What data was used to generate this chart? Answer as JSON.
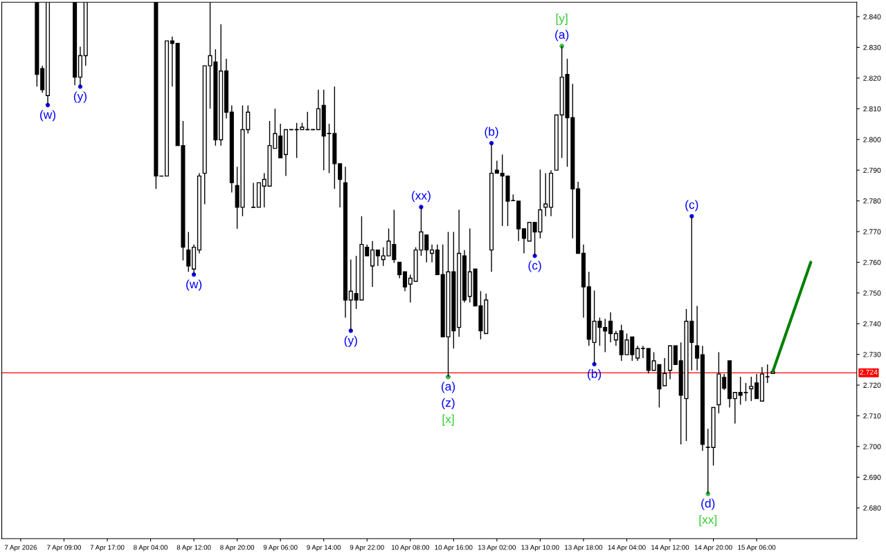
{
  "chart_data": {
    "type": "candlestick",
    "categories": [
      "7 Apr 2026",
      null,
      null,
      null,
      null,
      null,
      null,
      null,
      "7 Apr 09:00",
      null,
      null,
      null,
      null,
      null,
      null,
      null,
      "7 Apr 17:00",
      null,
      null,
      null,
      null,
      null,
      null,
      null,
      "8 Apr 04:00",
      null,
      null,
      null,
      null,
      null,
      null,
      null,
      "8 Apr 12:00",
      null,
      null,
      null,
      null,
      null,
      null,
      null,
      "8 Apr 20:00",
      null,
      null,
      null,
      null,
      null,
      null,
      null,
      "9 Apr 06:00",
      null,
      null,
      null,
      null,
      null,
      null,
      null,
      "9 Apr 14:00",
      null,
      null,
      null,
      null,
      null,
      null,
      null,
      "9 Apr 22:00",
      null,
      null,
      null,
      null,
      null,
      null,
      null,
      "10 Apr 08:00",
      null,
      null,
      null,
      null,
      null,
      null,
      null,
      "10 Apr 16:00",
      null,
      null,
      null,
      null,
      null,
      null,
      null,
      "13 Apr 02:00",
      null,
      null,
      null,
      null,
      null,
      null,
      null,
      "13 Apr 10:00",
      null,
      null,
      null,
      null,
      null,
      null,
      null,
      "13 Apr 18:00",
      null,
      null,
      null,
      null,
      null,
      null,
      null,
      "14 Apr 04:00",
      null,
      null,
      null,
      null,
      null,
      null,
      null,
      "14 Apr 12:00",
      null,
      null,
      null,
      null,
      null,
      null,
      null,
      "14 Apr 20:00",
      null,
      null,
      null,
      null,
      null,
      null,
      null,
      "15 Apr 06:00",
      null,
      null,
      null,
      null,
      null,
      null,
      null,
      null,
      null,
      null,
      null,
      null,
      null,
      null,
      null,
      null,
      null,
      null
    ],
    "ohlc": [
      null,
      null,
      null,
      [
        2.8447,
        2.8447,
        2.8172,
        2.8212
      ],
      [
        2.8231,
        2.824,
        2.8152,
        2.8162
      ],
      [
        2.8143,
        2.8447,
        2.8112,
        2.8447
      ],
      null,
      null,
      null,
      null,
      [
        2.8447,
        2.8447,
        2.8177,
        2.8203
      ],
      [
        2.8203,
        2.8302,
        2.8172,
        2.8273
      ],
      [
        2.8273,
        2.8447,
        2.824,
        2.8447
      ],
      null,
      null,
      null,
      null,
      null,
      null,
      null,
      null,
      null,
      null,
      null,
      null,
      [
        2.8447,
        2.8447,
        2.7839,
        2.7881
      ],
      [
        2.7881,
        2.7881,
        2.7881,
        2.7881
      ],
      [
        2.7881,
        2.8321,
        2.7881,
        2.8321
      ],
      [
        2.8321,
        2.8335,
        2.8172,
        2.8313
      ],
      [
        2.8313,
        2.8313,
        2.798,
        2.798
      ],
      [
        2.798,
        2.806,
        2.7606,
        2.7649
      ],
      [
        2.764,
        2.7699,
        2.7569,
        2.7588
      ],
      [
        2.7578,
        2.7658,
        2.756,
        2.7649
      ],
      [
        2.764,
        2.789,
        2.7629,
        2.7881
      ],
      [
        2.789,
        2.824,
        2.7789,
        2.824
      ],
      [
        2.824,
        2.8447,
        2.81,
        2.8273
      ],
      [
        2.8252,
        2.8294,
        2.798,
        2.7999
      ],
      [
        2.7999,
        2.8375,
        2.798,
        2.8223
      ],
      [
        2.8223,
        2.8263,
        2.8068,
        2.8089
      ],
      [
        2.8089,
        2.8111,
        2.7827,
        2.7859
      ],
      [
        2.785,
        2.7911,
        2.7709,
        2.7779
      ],
      [
        2.7779,
        2.8111,
        2.775,
        2.8032
      ],
      [
        2.8032,
        2.8111,
        2.8019,
        2.8089
      ],
      [
        2.7779,
        2.7859,
        2.7779,
        2.7779
      ],
      [
        2.7779,
        2.7859,
        2.7779,
        2.7859
      ],
      [
        2.7848,
        2.789,
        2.7779,
        2.787
      ],
      [
        2.7848,
        2.806,
        2.7848,
        2.798
      ],
      [
        2.7971,
        2.81,
        2.7971,
        2.8019
      ],
      [
        2.8011,
        2.8051,
        2.794,
        2.794
      ],
      [
        2.7951,
        2.8032,
        2.7881,
        2.8032
      ],
      [
        2.8032,
        2.8032,
        2.8032,
        2.8032
      ],
      [
        2.8032,
        2.8054,
        2.794,
        2.8032
      ],
      [
        2.8032,
        2.8054,
        2.8032,
        2.804
      ],
      [
        2.8032,
        2.809,
        2.8032,
        2.8032
      ],
      [
        2.8032,
        2.8032,
        2.8032,
        2.8032
      ],
      [
        2.8032,
        2.8162,
        2.8032,
        2.81
      ],
      [
        2.8111,
        2.8162,
        2.79,
        2.8011
      ],
      [
        2.8019,
        2.8051,
        2.789,
        2.8019
      ],
      [
        2.8019,
        2.8172,
        2.7839,
        2.7921
      ],
      [
        2.7921,
        2.7921,
        2.7779,
        2.787
      ],
      [
        2.7859,
        2.7911,
        2.742,
        2.7477
      ],
      [
        2.7477,
        2.7609,
        2.7377,
        2.7506
      ],
      [
        2.7498,
        2.7621,
        2.7448,
        2.7477
      ],
      [
        2.7477,
        2.775,
        2.7477,
        2.7658
      ],
      [
        2.7649,
        2.7658,
        2.7621,
        2.7621
      ],
      [
        2.7588,
        2.7669,
        2.752,
        2.764
      ],
      [
        2.764,
        2.764,
        2.7588,
        2.7621
      ],
      [
        2.7609,
        2.7649,
        2.7588,
        2.7621
      ],
      [
        2.7621,
        2.771,
        2.7621,
        2.7669
      ],
      [
        2.7658,
        2.7771,
        2.7598,
        2.7609
      ],
      [
        2.76,
        2.76,
        2.7548,
        2.756
      ],
      [
        2.7569,
        2.7569,
        2.7506,
        2.752
      ],
      [
        2.7529,
        2.756,
        2.7469,
        2.7548
      ],
      [
        2.7538,
        2.7649,
        2.7538,
        2.764
      ],
      [
        2.764,
        2.778,
        2.7621,
        2.7699
      ],
      [
        2.7689,
        2.7689,
        2.76,
        2.764
      ],
      [
        2.7629,
        2.7658,
        2.76,
        2.764
      ],
      [
        2.764,
        2.7658,
        2.756,
        2.756
      ],
      [
        2.756,
        2.7658,
        2.7357,
        2.7357
      ],
      [
        2.7357,
        2.7699,
        2.7227,
        2.7569
      ],
      [
        2.7569,
        2.7699,
        2.7319,
        2.7377
      ],
      [
        2.7388,
        2.7771,
        2.7357,
        2.7629
      ],
      [
        2.7621,
        2.764,
        2.7469,
        2.7477
      ],
      [
        2.7489,
        2.771,
        2.7469,
        2.7569
      ],
      [
        2.7578,
        2.7578,
        2.7458,
        2.7458
      ],
      [
        2.7458,
        2.7506,
        2.7349,
        2.7377
      ],
      [
        2.7368,
        2.7498,
        2.7368,
        2.7477
      ],
      [
        2.764,
        2.7988,
        2.7569,
        2.789
      ],
      [
        2.79,
        2.7931,
        2.789,
        2.789
      ],
      [
        2.789,
        2.7951,
        2.7718,
        2.7881
      ],
      [
        2.7881,
        2.7881,
        2.7718,
        2.7799
      ],
      [
        2.7801,
        2.7821,
        2.7801,
        2.7801
      ],
      [
        2.7799,
        2.7799,
        2.7669,
        2.7709
      ],
      [
        2.7709,
        2.7709,
        2.7629,
        2.7678
      ],
      [
        2.7669,
        2.773,
        2.7669,
        2.773
      ],
      [
        2.773,
        2.773,
        2.7621,
        2.7699
      ],
      [
        2.7699,
        2.7902,
        2.7678,
        2.7771
      ],
      [
        2.7779,
        2.789,
        2.775,
        2.779
      ],
      [
        2.7779,
        2.79,
        2.775,
        2.789
      ],
      [
        2.79,
        2.808,
        2.79,
        2.808
      ],
      [
        2.808,
        2.8304,
        2.794,
        2.8203
      ],
      [
        2.8212,
        2.8263,
        2.7911,
        2.8071
      ],
      [
        2.8071,
        2.8181,
        2.7678,
        2.7839
      ],
      [
        2.7839,
        2.7862,
        2.7629,
        2.7629
      ],
      [
        2.7629,
        2.7658,
        2.742,
        2.752
      ],
      [
        2.752,
        2.7569,
        2.7328,
        2.7349
      ],
      [
        2.7339,
        2.7508,
        2.7268,
        2.7408
      ],
      [
        2.7408,
        2.742,
        2.7328,
        2.7388
      ],
      [
        2.7388,
        2.7416,
        2.7307,
        2.7376
      ],
      [
        2.7408,
        2.7437,
        2.7339,
        2.7368
      ],
      [
        2.7347,
        2.7377,
        2.7328,
        2.7368
      ],
      [
        2.7377,
        2.7397,
        2.7279,
        2.7299
      ],
      [
        2.7299,
        2.7368,
        2.7299,
        2.7347
      ],
      [
        2.7357,
        2.7357,
        2.7279,
        2.7299
      ],
      [
        2.7288,
        2.7328,
        2.7279,
        2.7319
      ],
      [
        2.7319,
        2.7328,
        2.7288,
        2.7319
      ],
      [
        2.7319,
        2.7319,
        2.7238,
        2.7248
      ],
      [
        2.7248,
        2.7307,
        2.7248,
        2.7279
      ],
      [
        2.7267,
        2.7267,
        2.7127,
        2.7188
      ],
      [
        2.7198,
        2.7288,
        2.7198,
        2.7238
      ],
      [
        2.7248,
        2.7328,
        2.7219,
        2.7328
      ],
      [
        2.7328,
        2.7328,
        2.7267,
        2.7267
      ],
      [
        2.7279,
        2.7339,
        2.7007,
        2.7167
      ],
      [
        2.7156,
        2.7448,
        2.7018,
        2.7408
      ],
      [
        2.7408,
        2.775,
        2.7248,
        2.7339
      ],
      [
        2.7328,
        2.7458,
        2.7248,
        2.7288
      ],
      [
        2.7299,
        2.7328,
        2.6986,
        2.7007
      ],
      [
        2.6997,
        2.7058,
        2.6846,
        2.6997
      ],
      [
        2.6997,
        2.7127,
        2.6938,
        2.7127
      ],
      [
        2.7136,
        2.7307,
        2.7108,
        2.7236
      ],
      [
        2.7225,
        2.7236,
        2.7184,
        2.719
      ],
      [
        2.7279,
        2.7279,
        2.7127,
        2.7156
      ],
      [
        2.7156,
        2.7176,
        2.7075,
        2.7176
      ],
      [
        2.7176,
        2.7227,
        2.7136,
        2.7167
      ],
      [
        2.7176,
        2.7207,
        2.7148,
        2.7176
      ],
      [
        2.7188,
        2.7227,
        2.7148,
        2.7196
      ],
      [
        2.7207,
        2.7236,
        2.7156,
        2.7156
      ],
      [
        2.7148,
        2.7259,
        2.7148,
        2.7236
      ],
      [
        2.7227,
        2.7267,
        2.7207,
        2.7227
      ],
      [
        2.7238,
        2.7248,
        2.7238,
        2.7245
      ],
      null,
      null,
      null,
      null,
      null,
      null,
      null,
      null,
      null,
      null,
      null,
      null,
      null,
      null,
      null
    ],
    "color": "#000000",
    "series": [
      {
        "type": "line",
        "values": [
          null,
          null,
          null,
          null,
          null,
          null,
          null,
          null,
          null,
          null,
          null,
          null,
          null,
          null,
          null,
          null,
          null,
          null,
          null,
          null,
          null,
          null,
          null,
          null,
          null,
          null,
          null,
          null,
          null,
          null,
          null,
          null,
          null,
          null,
          null,
          null,
          null,
          null,
          null,
          null,
          null,
          null,
          null,
          null,
          null,
          null,
          null,
          null,
          null,
          null,
          null,
          null,
          null,
          null,
          null,
          null,
          null,
          null,
          null,
          null,
          null,
          null,
          null,
          null,
          null,
          null,
          null,
          null,
          null,
          null,
          null,
          null,
          null,
          null,
          null,
          null,
          null,
          null,
          null,
          null,
          null,
          null,
          null,
          null,
          null,
          null,
          null,
          null,
          null,
          null,
          null,
          null,
          null,
          null,
          null,
          null,
          null,
          null,
          null,
          null,
          null,
          null,
          null,
          null,
          null,
          null,
          null,
          null,
          null,
          null,
          null,
          null,
          null,
          null,
          null,
          null,
          null,
          null,
          null,
          null,
          null,
          null,
          null,
          null,
          null,
          null,
          null,
          null,
          null,
          null,
          null,
          null,
          null,
          null,
          null,
          null,
          null,
          null,
          null,
          2.7245,
          null,
          null,
          null,
          null,
          null,
          null,
          2.76,
          null,
          null,
          null,
          null,
          null,
          null,
          null,
          null
        ],
        "color": "#008000"
      },
      {
        "type": "scatter",
        "marker": "circle",
        "color": "#0000ff",
        "values": [
          null,
          null,
          null,
          null,
          null,
          2.8112,
          null,
          null,
          null,
          null,
          null,
          2.8172,
          null,
          null,
          null,
          null,
          null,
          null,
          null,
          null,
          null,
          null,
          null,
          null,
          null,
          null,
          null,
          null,
          null,
          null,
          null,
          null,
          2.756,
          null,
          null,
          null,
          null,
          null,
          null,
          null,
          null,
          null,
          null,
          null,
          null,
          null,
          null,
          null,
          null,
          null,
          null,
          null,
          null,
          null,
          null,
          null,
          null,
          null,
          null,
          null,
          null,
          2.7377,
          null,
          null,
          null,
          null,
          null,
          null,
          null,
          null,
          null,
          null,
          null,
          null,
          2.778,
          null,
          null,
          null,
          null,
          2.7227,
          null,
          null,
          null,
          null,
          null,
          null,
          null,
          2.7988,
          null,
          null,
          null,
          null,
          null,
          null,
          null,
          2.7621,
          null,
          null,
          null,
          null,
          2.8304,
          null,
          null,
          null,
          null,
          null,
          2.7268,
          null,
          null,
          null,
          null,
          null,
          null,
          null,
          null,
          null,
          null,
          null,
          null,
          null,
          null,
          null,
          null,
          null,
          2.775,
          null,
          null,
          2.6846,
          null,
          null,
          null,
          null,
          null,
          null,
          null,
          null,
          null,
          null,
          null,
          null,
          null,
          null,
          null,
          null,
          null,
          null,
          null,
          null,
          null,
          null,
          null,
          null,
          null,
          null,
          null
        ],
        "value_labels": [
          null,
          null,
          null,
          null,
          null,
          "(w)",
          null,
          null,
          null,
          null,
          null,
          "(y)",
          null,
          null,
          null,
          null,
          null,
          null,
          null,
          null,
          null,
          null,
          null,
          null,
          null,
          null,
          null,
          null,
          null,
          null,
          null,
          null,
          "(w)",
          null,
          null,
          null,
          null,
          null,
          null,
          null,
          null,
          null,
          null,
          null,
          null,
          null,
          null,
          null,
          null,
          null,
          null,
          null,
          null,
          null,
          null,
          null,
          null,
          null,
          null,
          null,
          null,
          "(y)",
          null,
          null,
          null,
          null,
          null,
          null,
          null,
          null,
          null,
          null,
          null,
          null,
          "(xx)",
          null,
          null,
          null,
          null,
          "(a)",
          null,
          null,
          null,
          null,
          null,
          null,
          null,
          "(b)",
          null,
          null,
          null,
          null,
          null,
          null,
          null,
          "(c)",
          null,
          null,
          null,
          null,
          "(a)",
          null,
          null,
          null,
          null,
          null,
          "(b)",
          null,
          null,
          null,
          null,
          null,
          null,
          null,
          null,
          null,
          null,
          null,
          null,
          null,
          null,
          null,
          null,
          null,
          "(c)",
          null,
          null,
          "(d)",
          null,
          null,
          null,
          null,
          null,
          null,
          null,
          null,
          null,
          null,
          null,
          null,
          null,
          null,
          null,
          null,
          null,
          null,
          null,
          null,
          null,
          null,
          null,
          null,
          null,
          null,
          null
        ]
      },
      {
        "type": "scatter",
        "marker": "circle",
        "color": "#0000ff",
        "values": [
          null,
          null,
          null,
          null,
          null,
          null,
          null,
          null,
          null,
          null,
          null,
          null,
          null,
          null,
          null,
          null,
          null,
          null,
          null,
          null,
          null,
          null,
          null,
          null,
          null,
          null,
          null,
          null,
          null,
          null,
          null,
          null,
          null,
          null,
          null,
          null,
          null,
          null,
          null,
          null,
          null,
          null,
          null,
          null,
          null,
          null,
          null,
          null,
          null,
          null,
          null,
          null,
          null,
          null,
          null,
          null,
          null,
          null,
          null,
          null,
          null,
          null,
          null,
          null,
          null,
          null,
          null,
          null,
          null,
          null,
          null,
          null,
          null,
          null,
          null,
          null,
          null,
          null,
          null,
          2.7227,
          null,
          null,
          null,
          null,
          null,
          null,
          null,
          null,
          null,
          null,
          null,
          null,
          null,
          null,
          null,
          null,
          null,
          null,
          null,
          null,
          null,
          null,
          null,
          null,
          null,
          null,
          null,
          null,
          null,
          null,
          null,
          null,
          null,
          null,
          null,
          null,
          null,
          null,
          null,
          null,
          null,
          null,
          null,
          null,
          null,
          null,
          null,
          null,
          null,
          null,
          null,
          null,
          null,
          null,
          null,
          null,
          null,
          null,
          null,
          null,
          null,
          null,
          null,
          null,
          null,
          null,
          null,
          null,
          null,
          null,
          null,
          null,
          null,
          null,
          null
        ],
        "value_labels": [
          null,
          null,
          null,
          null,
          null,
          null,
          null,
          null,
          null,
          null,
          null,
          null,
          null,
          null,
          null,
          null,
          null,
          null,
          null,
          null,
          null,
          null,
          null,
          null,
          null,
          null,
          null,
          null,
          null,
          null,
          null,
          null,
          null,
          null,
          null,
          null,
          null,
          null,
          null,
          null,
          null,
          null,
          null,
          null,
          null,
          null,
          null,
          null,
          null,
          null,
          null,
          null,
          null,
          null,
          null,
          null,
          null,
          null,
          null,
          null,
          null,
          null,
          null,
          null,
          null,
          null,
          null,
          null,
          null,
          null,
          null,
          null,
          null,
          null,
          null,
          null,
          null,
          null,
          null,
          "(z)",
          null,
          null,
          null,
          null,
          null,
          null,
          null,
          null,
          null,
          null,
          null,
          null,
          null,
          null,
          null,
          null,
          null,
          null,
          null,
          null,
          null,
          null,
          null,
          null,
          null,
          null,
          null,
          null,
          null,
          null,
          null,
          null,
          null,
          null,
          null,
          null,
          null,
          null,
          null,
          null,
          null,
          null,
          null,
          null,
          null,
          null,
          null,
          null,
          null,
          null,
          null,
          null,
          null,
          null,
          null,
          null,
          null,
          null,
          null,
          null,
          null,
          null,
          null,
          null,
          null,
          null,
          null,
          null,
          null,
          null,
          null,
          null,
          null,
          null,
          null
        ]
      },
      {
        "type": "scatter",
        "marker": "circle",
        "color": "#33cc33",
        "values": [
          null,
          null,
          null,
          null,
          null,
          null,
          null,
          null,
          null,
          null,
          null,
          null,
          null,
          null,
          null,
          null,
          null,
          null,
          null,
          null,
          null,
          null,
          null,
          null,
          null,
          null,
          null,
          null,
          null,
          null,
          null,
          null,
          null,
          null,
          null,
          null,
          null,
          null,
          null,
          null,
          null,
          null,
          null,
          null,
          null,
          null,
          null,
          null,
          null,
          null,
          null,
          null,
          null,
          null,
          null,
          null,
          null,
          null,
          null,
          null,
          null,
          null,
          null,
          null,
          null,
          null,
          null,
          null,
          null,
          null,
          null,
          null,
          null,
          null,
          null,
          null,
          null,
          null,
          null,
          2.7227,
          null,
          null,
          null,
          null,
          null,
          null,
          null,
          null,
          null,
          null,
          null,
          null,
          null,
          null,
          null,
          null,
          null,
          null,
          null,
          null,
          2.8304,
          null,
          null,
          null,
          null,
          null,
          null,
          null,
          null,
          null,
          null,
          null,
          null,
          null,
          null,
          null,
          null,
          null,
          null,
          null,
          null,
          null,
          null,
          null,
          null,
          null,
          null,
          2.6846,
          null,
          null,
          null,
          null,
          null,
          null,
          null,
          null,
          null,
          null,
          null,
          null,
          null,
          null,
          null,
          null,
          null,
          null,
          null,
          null,
          null,
          null,
          null,
          null,
          null,
          null,
          null
        ],
        "value_labels": [
          null,
          null,
          null,
          null,
          null,
          null,
          null,
          null,
          null,
          null,
          null,
          null,
          null,
          null,
          null,
          null,
          null,
          null,
          null,
          null,
          null,
          null,
          null,
          null,
          null,
          null,
          null,
          null,
          null,
          null,
          null,
          null,
          null,
          null,
          null,
          null,
          null,
          null,
          null,
          null,
          null,
          null,
          null,
          null,
          null,
          null,
          null,
          null,
          null,
          null,
          null,
          null,
          null,
          null,
          null,
          null,
          null,
          null,
          null,
          null,
          null,
          null,
          null,
          null,
          null,
          null,
          null,
          null,
          null,
          null,
          null,
          null,
          null,
          null,
          null,
          null,
          null,
          null,
          null,
          "[x]",
          null,
          null,
          null,
          null,
          null,
          null,
          null,
          null,
          null,
          null,
          null,
          null,
          null,
          null,
          null,
          null,
          null,
          null,
          null,
          null,
          "[y]",
          null,
          null,
          null,
          null,
          null,
          null,
          null,
          null,
          null,
          null,
          null,
          null,
          null,
          null,
          null,
          null,
          null,
          null,
          null,
          null,
          null,
          null,
          null,
          null,
          null,
          null,
          "[xx]",
          null,
          null,
          null,
          null,
          null,
          null,
          null,
          null,
          null,
          null,
          null,
          null,
          null,
          null,
          null,
          null,
          null,
          null,
          null,
          null,
          null,
          null,
          null,
          null,
          null,
          null,
          null
        ]
      }
    ],
    "ylim": [
      2.67,
      2.8447
    ],
    "yticks": [
      {
        "value": 2.68,
        "label": "2.680"
      },
      {
        "value": 2.69,
        "label": "2.690"
      },
      {
        "value": 2.7,
        "label": "2.700"
      },
      {
        "value": 2.71,
        "label": "2.710"
      },
      {
        "value": 2.72,
        "label": "2.720"
      },
      {
        "value": 2.73,
        "label": "2.730"
      },
      {
        "value": 2.74,
        "label": "2.740"
      },
      {
        "value": 2.75,
        "label": "2.750"
      },
      {
        "value": 2.76,
        "label": "2.760"
      },
      {
        "value": 2.77,
        "label": "2.770"
      },
      {
        "value": 2.78,
        "label": "2.780"
      },
      {
        "value": 2.79,
        "label": "2.790"
      },
      {
        "value": 2.8,
        "label": "2.800"
      },
      {
        "value": 2.81,
        "label": "2.810"
      },
      {
        "value": 2.82,
        "label": "2.820"
      },
      {
        "value": 2.83,
        "label": "2.830"
      },
      {
        "value": 2.84,
        "label": "2.840"
      }
    ],
    "ref_lines": [
      {
        "axis": "y",
        "value": 2.724,
        "label": "2.724",
        "color": "#ff0000"
      }
    ],
    "grid": false,
    "legend": false
  }
}
